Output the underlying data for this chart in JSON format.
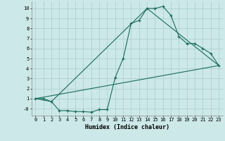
{
  "title": "",
  "xlabel": "Humidex (Indice chaleur)",
  "bg_color": "#cce8e8",
  "grid_color": "#aacccc",
  "line_color": "#1a6b5a",
  "xlim": [
    -0.5,
    23.5
  ],
  "ylim": [
    -0.7,
    10.7
  ],
  "xticks": [
    0,
    1,
    2,
    3,
    4,
    5,
    6,
    7,
    8,
    9,
    10,
    11,
    12,
    13,
    14,
    15,
    16,
    17,
    18,
    19,
    20,
    21,
    22,
    23
  ],
  "yticks": [
    0,
    1,
    2,
    3,
    4,
    5,
    6,
    7,
    8,
    9,
    10
  ],
  "ytick_labels": [
    "-0",
    "1",
    "2",
    "3",
    "4",
    "5",
    "6",
    "7",
    "8",
    "9",
    "10"
  ],
  "line1_x": [
    0,
    1,
    2,
    3,
    4,
    5,
    6,
    7,
    8,
    9,
    10,
    11,
    12,
    13,
    14,
    15,
    16,
    17,
    18,
    19,
    20,
    21,
    22,
    23
  ],
  "line1_y": [
    1,
    1,
    0.7,
    -0.2,
    -0.2,
    -0.3,
    -0.3,
    -0.35,
    -0.1,
    -0.1,
    3.1,
    5.0,
    8.5,
    8.8,
    10.0,
    10.0,
    10.2,
    9.3,
    7.2,
    6.5,
    6.5,
    6.0,
    5.5,
    4.3
  ],
  "line2_x": [
    0,
    2,
    14,
    23
  ],
  "line2_y": [
    1,
    0.7,
    10.0,
    4.3
  ],
  "line3_x": [
    0,
    23
  ],
  "line3_y": [
    1,
    4.3
  ]
}
